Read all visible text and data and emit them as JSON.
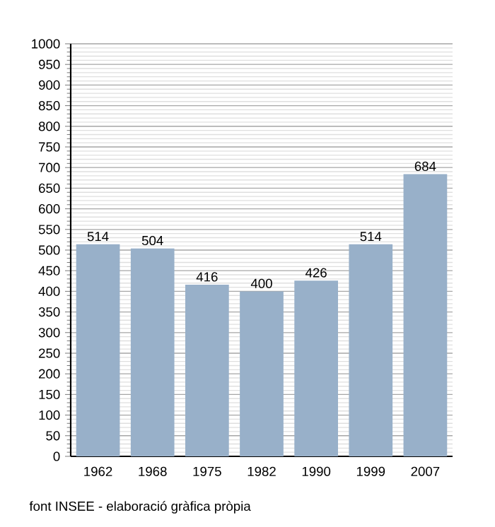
{
  "chart_data": {
    "type": "bar",
    "categories": [
      "1962",
      "1968",
      "1975",
      "1982",
      "1990",
      "1999",
      "2007"
    ],
    "values": [
      514,
      504,
      416,
      400,
      426,
      514,
      684
    ],
    "color": "#98b0c9",
    "ylim": [
      0,
      1000
    ],
    "yticks": [
      0,
      50,
      100,
      150,
      200,
      250,
      300,
      350,
      400,
      450,
      500,
      550,
      600,
      650,
      700,
      750,
      800,
      850,
      900,
      950,
      1000
    ],
    "grid": "y",
    "data_labels": true,
    "annotations": [
      "font INSEE - elaboració gràfica pròpia"
    ]
  }
}
